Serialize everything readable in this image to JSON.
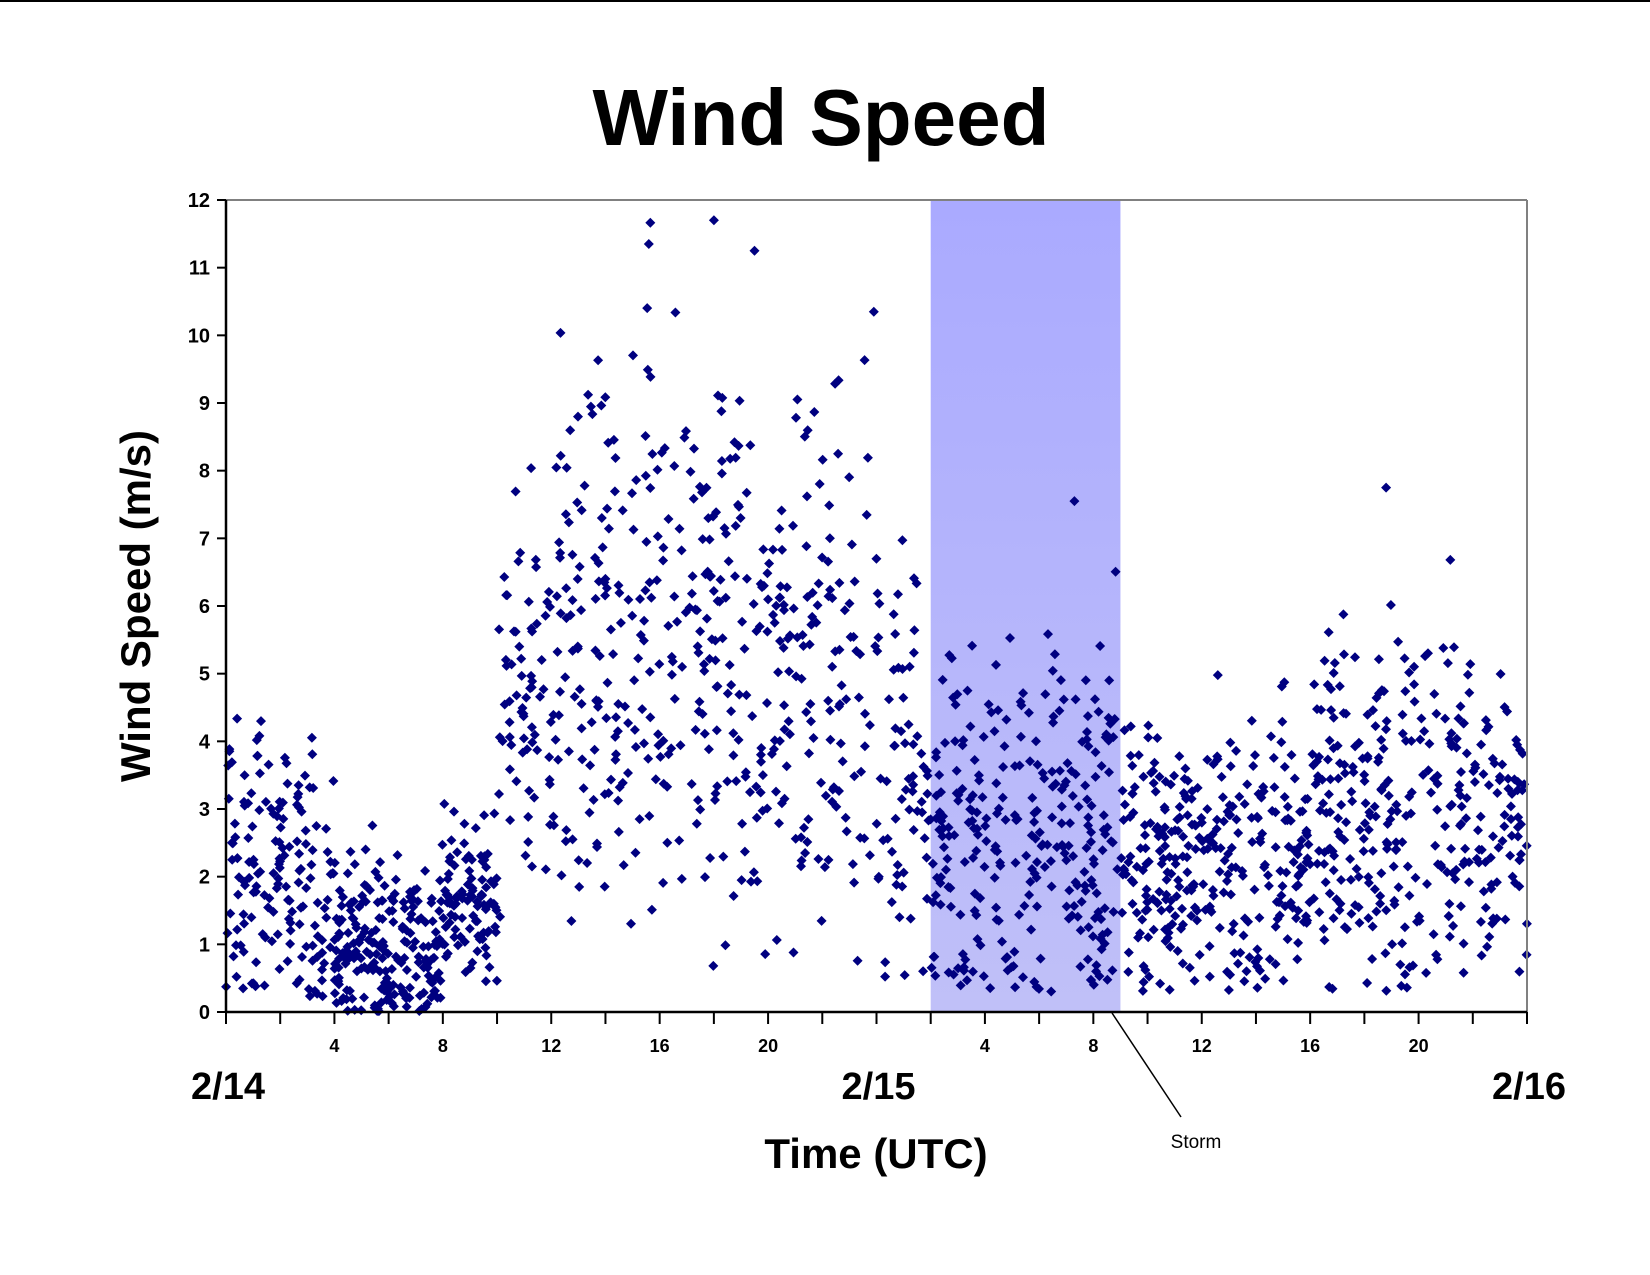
{
  "chart_data": {
    "type": "scatter",
    "title": "Wind Speed",
    "xlabel": "Time (UTC)",
    "ylabel": "Wind Speed (m/s)",
    "ylim": [
      0,
      12
    ],
    "yticks": [
      0,
      1,
      2,
      3,
      4,
      5,
      6,
      7,
      8,
      9,
      10,
      11,
      12
    ],
    "xlim_hours": [
      0,
      48
    ],
    "x_minor_tick_interval_hours": 2,
    "x_hour_labels": [
      {
        "hour": 4,
        "label": "4"
      },
      {
        "hour": 8,
        "label": "8"
      },
      {
        "hour": 12,
        "label": "12"
      },
      {
        "hour": 16,
        "label": "16"
      },
      {
        "hour": 20,
        "label": "20"
      },
      {
        "hour": 28,
        "label": "4"
      },
      {
        "hour": 32,
        "label": "8"
      },
      {
        "hour": 36,
        "label": "12"
      },
      {
        "hour": 40,
        "label": "16"
      },
      {
        "hour": 44,
        "label": "20"
      }
    ],
    "x_date_labels": [
      {
        "hour": 0,
        "label": "2/14"
      },
      {
        "hour": 24,
        "label": "2/15"
      },
      {
        "hour": 48,
        "label": "2/16"
      }
    ],
    "grid": false,
    "legend": null,
    "marker": {
      "shape": "diamond",
      "color": "#000080"
    },
    "shaded_region": {
      "label": "Storm",
      "start_hour": 26,
      "end_hour": 33,
      "color_top": "#aaaaff",
      "color_bottom": "#c0c0f8"
    },
    "annotations": [
      {
        "text": "Storm",
        "points_to_hour": 33
      }
    ],
    "series": [
      {
        "name": "Wind Speed",
        "description": "Approximate envelope of dense scatter, per time segment (hours since 2/14 00:00 UTC)",
        "segments": [
          {
            "from": 0,
            "to": 4,
            "min": 0.2,
            "mean": 2.0,
            "max": 5.8,
            "density": 40
          },
          {
            "from": 4,
            "to": 8,
            "min": 0.0,
            "mean": 0.9,
            "max": 3.9,
            "density": 55
          },
          {
            "from": 8,
            "to": 10,
            "min": 0.3,
            "mean": 1.6,
            "max": 3.8,
            "density": 50
          },
          {
            "from": 10,
            "to": 12,
            "min": 0.3,
            "mean": 4.2,
            "max": 8.2,
            "density": 35
          },
          {
            "from": 12,
            "to": 18,
            "min": 0.2,
            "mean": 5.6,
            "max": 11.7,
            "density": 38
          },
          {
            "from": 18,
            "to": 24,
            "min": 0.5,
            "mean": 5.0,
            "max": 11.2,
            "density": 36
          },
          {
            "from": 24,
            "to": 26,
            "min": 0.3,
            "mean": 3.6,
            "max": 8.4,
            "density": 34
          },
          {
            "from": 26,
            "to": 33,
            "min": 0.3,
            "mean": 2.7,
            "max": 7.6,
            "density": 40
          },
          {
            "from": 33,
            "to": 40,
            "min": 0.3,
            "mean": 2.2,
            "max": 6.2,
            "density": 45
          },
          {
            "from": 40,
            "to": 46,
            "min": 0.3,
            "mean": 3.0,
            "max": 7.8,
            "density": 42
          },
          {
            "from": 46,
            "to": 48,
            "min": 0.5,
            "mean": 2.8,
            "max": 6.5,
            "density": 38
          }
        ],
        "notable_points": [
          {
            "hour": 18.0,
            "value": 11.7
          },
          {
            "hour": 15.6,
            "value": 11.35
          },
          {
            "hour": 19.5,
            "value": 11.25
          },
          {
            "hour": 23.9,
            "value": 10.35
          },
          {
            "hour": 31.3,
            "value": 7.55
          },
          {
            "hour": 42.8,
            "value": 7.75
          },
          {
            "hour": 5.6,
            "value": 0.05
          }
        ]
      }
    ]
  },
  "labels": {
    "title": "Wind Speed",
    "xlabel": "Time (UTC)",
    "ylabel": "Wind Speed (m/s)",
    "storm": "Storm"
  }
}
